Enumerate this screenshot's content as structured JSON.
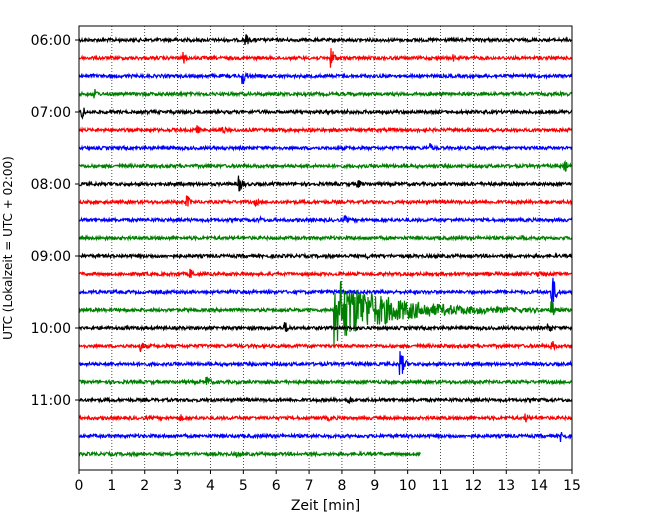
{
  "chart_data": {
    "type": "line",
    "xlabel": "Zeit  [min]",
    "ylabel": "UTC (Lokalzeit = UTC + 02:00)",
    "xlim": [
      0,
      15
    ],
    "x_ticks": [
      0,
      1,
      2,
      3,
      4,
      5,
      6,
      7,
      8,
      9,
      10,
      11,
      12,
      13,
      14,
      15
    ],
    "y_ticks": [
      "06:00",
      "07:00",
      "08:00",
      "09:00",
      "10:00",
      "11:00"
    ],
    "grid": "vertical-dotted",
    "trace_interval_min": 15,
    "traces": [
      {
        "start": "06:00",
        "color": "#000000",
        "events": [
          {
            "t": 3.0,
            "amp": 3
          },
          {
            "t": 5.1,
            "amp": 6
          }
        ]
      },
      {
        "start": "06:15",
        "color": "#ff0000",
        "events": [
          {
            "t": 3.2,
            "amp": 6
          },
          {
            "t": 7.7,
            "amp": 10
          },
          {
            "t": 11.4,
            "amp": 4
          }
        ]
      },
      {
        "start": "06:30",
        "color": "#0000ff",
        "events": [
          {
            "t": 0.4,
            "amp": 3
          },
          {
            "t": 5.0,
            "amp": 9
          }
        ]
      },
      {
        "start": "06:45",
        "color": "#008000",
        "events": [
          {
            "t": 0.5,
            "amp": 5
          }
        ]
      },
      {
        "start": "07:00",
        "color": "#000000",
        "events": [
          {
            "t": 0.1,
            "amp": 7
          },
          {
            "t": 8.2,
            "amp": 3
          }
        ]
      },
      {
        "start": "07:15",
        "color": "#ff0000",
        "events": [
          {
            "t": 3.6,
            "amp": 5
          },
          {
            "t": 4.4,
            "amp": 4
          }
        ]
      },
      {
        "start": "07:30",
        "color": "#0000ff",
        "events": [
          {
            "t": 10.7,
            "amp": 5
          }
        ]
      },
      {
        "start": "07:45",
        "color": "#008000",
        "events": [
          {
            "t": 14.8,
            "amp": 6
          }
        ]
      },
      {
        "start": "08:00",
        "color": "#000000",
        "events": [
          {
            "t": 4.9,
            "amp": 9
          },
          {
            "t": 8.5,
            "amp": 5
          },
          {
            "t": 12.5,
            "amp": 3
          }
        ]
      },
      {
        "start": "08:15",
        "color": "#ff0000",
        "events": [
          {
            "t": 3.3,
            "amp": 7
          },
          {
            "t": 5.4,
            "amp": 4
          }
        ]
      },
      {
        "start": "08:30",
        "color": "#0000ff",
        "events": [
          {
            "t": 5.5,
            "amp": 4
          },
          {
            "t": 8.1,
            "amp": 5
          }
        ]
      },
      {
        "start": "08:45",
        "color": "#008000",
        "events": [
          {
            "t": 13.5,
            "amp": 4
          }
        ]
      },
      {
        "start": "09:00",
        "color": "#000000",
        "events": [
          {
            "t": 8.8,
            "amp": 3
          }
        ]
      },
      {
        "start": "09:15",
        "color": "#ff0000",
        "events": [
          {
            "t": 3.4,
            "amp": 6
          },
          {
            "t": 14.0,
            "amp": 4
          }
        ]
      },
      {
        "start": "09:30",
        "color": "#0000ff",
        "events": [
          {
            "t": 14.4,
            "amp": 18
          }
        ]
      },
      {
        "start": "09:45",
        "color": "#008000",
        "events": [
          {
            "t": 7.8,
            "amp": 30,
            "long": true
          },
          {
            "t": 14.4,
            "amp": 10
          }
        ]
      },
      {
        "start": "10:00",
        "color": "#000000",
        "events": [
          {
            "t": 6.3,
            "amp": 6
          },
          {
            "t": 14.3,
            "amp": 6
          }
        ]
      },
      {
        "start": "10:15",
        "color": "#ff0000",
        "events": [
          {
            "t": 1.9,
            "amp": 6
          },
          {
            "t": 14.4,
            "amp": 6
          }
        ]
      },
      {
        "start": "10:30",
        "color": "#0000ff",
        "events": [
          {
            "t": 9.8,
            "amp": 14
          }
        ]
      },
      {
        "start": "10:45",
        "color": "#008000",
        "events": [
          {
            "t": 3.9,
            "amp": 7
          }
        ]
      },
      {
        "start": "11:00",
        "color": "#000000",
        "events": [
          {
            "t": 8.2,
            "amp": 5
          }
        ]
      },
      {
        "start": "11:15",
        "color": "#ff0000",
        "events": [
          {
            "t": 3.1,
            "amp": 4
          },
          {
            "t": 7.6,
            "amp": 3
          },
          {
            "t": 13.6,
            "amp": 5
          }
        ]
      },
      {
        "start": "11:30",
        "color": "#0000ff",
        "events": [
          {
            "t": 14.7,
            "amp": 6
          }
        ]
      },
      {
        "start": "11:45",
        "color": "#008000",
        "end": 10.4,
        "events": [
          {
            "t": 4.8,
            "amp": 4
          }
        ]
      }
    ]
  }
}
